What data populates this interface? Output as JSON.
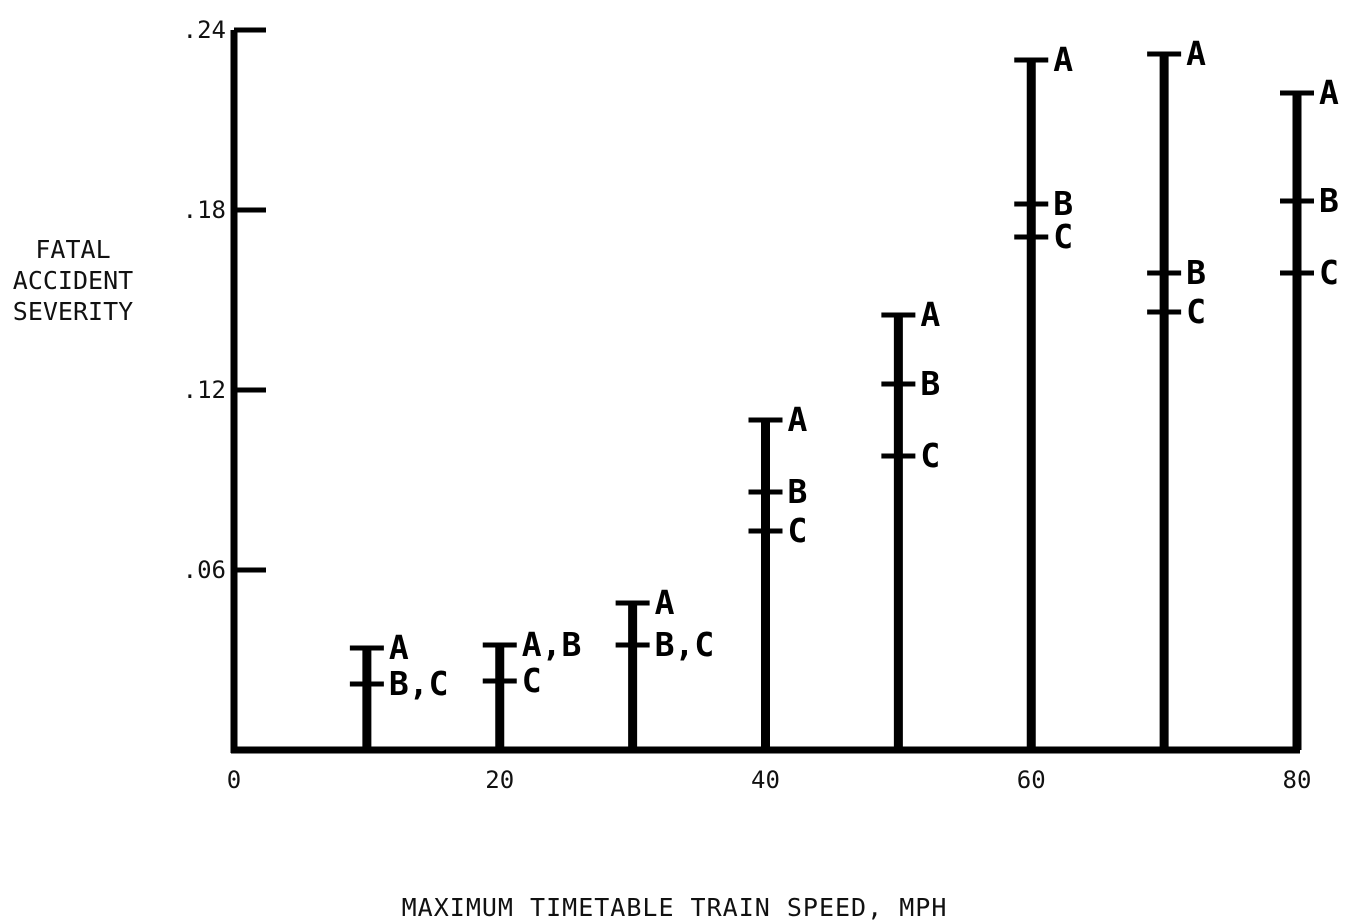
{
  "chart_data": {
    "type": "bar",
    "title": "",
    "xlabel": "MAXIMUM TIMETABLE TRAIN SPEED, MPH",
    "ylabel_lines": [
      "FATAL",
      "ACCIDENT",
      "SEVERITY"
    ],
    "xlim": [
      0,
      80
    ],
    "ylim": [
      0,
      0.24
    ],
    "x_ticks": [
      {
        "value": 0,
        "label": "0"
      },
      {
        "value": 20,
        "label": "20"
      },
      {
        "value": 40,
        "label": "40"
      },
      {
        "value": 60,
        "label": "60"
      },
      {
        "value": 80,
        "label": "80"
      }
    ],
    "y_ticks": [
      {
        "value": 0.06,
        "label": ".06"
      },
      {
        "value": 0.12,
        "label": ".12"
      },
      {
        "value": 0.18,
        "label": ".18"
      },
      {
        "value": 0.24,
        "label": ".24"
      }
    ],
    "grid": false,
    "bars": [
      {
        "x": 10,
        "value": 0.034,
        "marks": [
          {
            "y": 0.034,
            "label": "A"
          },
          {
            "y": 0.022,
            "label": "B,C"
          }
        ]
      },
      {
        "x": 20,
        "value": 0.035,
        "marks": [
          {
            "y": 0.035,
            "label": "A,B"
          },
          {
            "y": 0.023,
            "label": "C"
          }
        ]
      },
      {
        "x": 30,
        "value": 0.049,
        "marks": [
          {
            "y": 0.049,
            "label": "A"
          },
          {
            "y": 0.035,
            "label": "B,C"
          }
        ]
      },
      {
        "x": 40,
        "value": 0.11,
        "marks": [
          {
            "y": 0.11,
            "label": "A"
          },
          {
            "y": 0.086,
            "label": "B"
          },
          {
            "y": 0.073,
            "label": "C"
          }
        ]
      },
      {
        "x": 50,
        "value": 0.145,
        "marks": [
          {
            "y": 0.145,
            "label": "A"
          },
          {
            "y": 0.122,
            "label": "B"
          },
          {
            "y": 0.098,
            "label": "C"
          }
        ]
      },
      {
        "x": 60,
        "value": 0.23,
        "marks": [
          {
            "y": 0.23,
            "label": "A"
          },
          {
            "y": 0.182,
            "label": "B"
          },
          {
            "y": 0.171,
            "label": "C"
          }
        ]
      },
      {
        "x": 70,
        "value": 0.232,
        "marks": [
          {
            "y": 0.232,
            "label": "A"
          },
          {
            "y": 0.159,
            "label": "B"
          },
          {
            "y": 0.146,
            "label": "C"
          }
        ]
      },
      {
        "x": 80,
        "value": 0.219,
        "marks": [
          {
            "y": 0.219,
            "label": "A"
          },
          {
            "y": 0.183,
            "label": "B"
          },
          {
            "y": 0.159,
            "label": "C"
          }
        ]
      }
    ]
  }
}
